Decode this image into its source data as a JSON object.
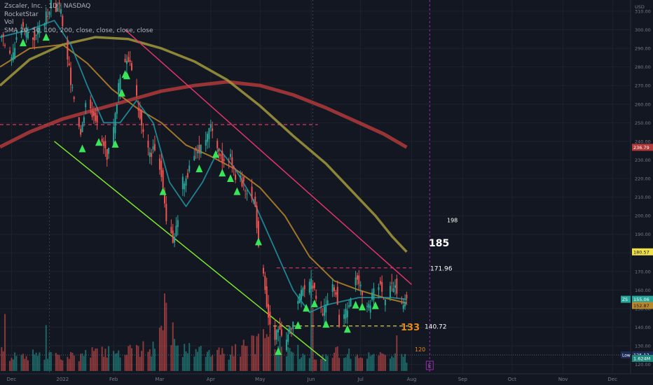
{
  "header": {
    "symbol_line": "Zscaler, Inc. · 1D · NASDAQ",
    "indicator_1": "RocketStar",
    "indicator_2": "Vol",
    "indicator_3": "SMA 20, 50, 100, 200, close, close, close, close"
  },
  "currency": "USD",
  "colors": {
    "background": "#131722",
    "up": "#26a69a",
    "down": "#ef5350",
    "sma20": "#2196a6",
    "sma50": "#b8862b",
    "sma100": "#a39a3c",
    "sma200": "#b23a3a",
    "support_trend": "#7ce62c",
    "resistance_trend": "#e0356a",
    "signal_arrow": "#39e65a"
  },
  "chart_data": {
    "type": "candlestick",
    "interval": "1D",
    "ylim": [
      115,
      316
    ],
    "y_ticks": [
      120,
      130,
      140,
      150,
      160,
      170,
      180,
      190,
      200,
      210,
      220,
      230,
      240,
      250,
      260,
      270,
      280,
      290,
      300,
      310
    ],
    "x_ticks": [
      "Dec",
      "2022",
      "Feb",
      "Mar",
      "Apr",
      "May",
      "Jun",
      "Jul",
      "Aug",
      "Sep",
      "Oct",
      "Nov",
      "Dec"
    ],
    "x_tick_days": [
      -31,
      0,
      31,
      59,
      90,
      120,
      151,
      181,
      212,
      243,
      273,
      304,
      334
    ],
    "last_bar_day": 209,
    "x_range_days": [
      -38,
      345
    ],
    "price_anchors": [
      [
        -38,
        300
      ],
      [
        -30,
        285
      ],
      [
        -24,
        302
      ],
      [
        -18,
        295
      ],
      [
        -12,
        300
      ],
      [
        -6,
        315
      ],
      [
        0,
        310
      ],
      [
        4,
        285
      ],
      [
        8,
        260
      ],
      [
        12,
        245
      ],
      [
        16,
        265
      ],
      [
        20,
        252
      ],
      [
        24,
        245
      ],
      [
        28,
        232
      ],
      [
        31,
        240
      ],
      [
        35,
        270
      ],
      [
        38,
        285
      ],
      [
        42,
        282
      ],
      [
        46,
        262
      ],
      [
        50,
        245
      ],
      [
        54,
        232
      ],
      [
        58,
        238
      ],
      [
        61,
        222
      ],
      [
        64,
        200
      ],
      [
        68,
        188
      ],
      [
        71,
        198
      ],
      [
        74,
        218
      ],
      [
        77,
        222
      ],
      [
        80,
        232
      ],
      [
        84,
        235
      ],
      [
        88,
        240
      ],
      [
        91,
        250
      ],
      [
        94,
        238
      ],
      [
        97,
        232
      ],
      [
        100,
        225
      ],
      [
        103,
        231
      ],
      [
        106,
        222
      ],
      [
        109,
        220
      ],
      [
        112,
        215
      ],
      [
        115,
        212
      ],
      [
        118,
        205
      ],
      [
        120,
        185
      ],
      [
        122,
        172
      ],
      [
        124,
        160
      ],
      [
        126,
        146
      ],
      [
        128,
        142
      ],
      [
        130,
        135
      ],
      [
        133,
        138
      ],
      [
        136,
        131
      ],
      [
        140,
        140
      ],
      [
        143,
        150
      ],
      [
        146,
        158
      ],
      [
        149,
        160
      ],
      [
        152,
        165
      ],
      [
        155,
        155
      ],
      [
        158,
        148
      ],
      [
        161,
        152
      ],
      [
        164,
        162
      ],
      [
        167,
        158
      ],
      [
        169,
        143
      ],
      [
        171,
        144
      ],
      [
        174,
        150
      ],
      [
        177,
        156
      ],
      [
        179,
        166
      ],
      [
        182,
        160
      ],
      [
        185,
        150
      ],
      [
        188,
        152
      ],
      [
        191,
        165
      ],
      [
        194,
        162
      ],
      [
        197,
        152
      ],
      [
        200,
        160
      ],
      [
        203,
        163
      ],
      [
        205,
        150
      ],
      [
        207,
        151
      ],
      [
        209,
        155
      ]
    ],
    "sma20": [
      [
        -38,
        296
      ],
      [
        -20,
        300
      ],
      [
        -5,
        305
      ],
      [
        5,
        292
      ],
      [
        15,
        270
      ],
      [
        25,
        250
      ],
      [
        35,
        250
      ],
      [
        45,
        262
      ],
      [
        55,
        250
      ],
      [
        65,
        218
      ],
      [
        75,
        205
      ],
      [
        85,
        218
      ],
      [
        95,
        236
      ],
      [
        105,
        225
      ],
      [
        115,
        210
      ],
      [
        120,
        200
      ],
      [
        130,
        180
      ],
      [
        140,
        160
      ],
      [
        150,
        148
      ],
      [
        160,
        152
      ],
      [
        170,
        154
      ],
      [
        180,
        156
      ],
      [
        190,
        156
      ],
      [
        200,
        156
      ],
      [
        209,
        155
      ]
    ],
    "sma50": [
      [
        -38,
        280
      ],
      [
        -20,
        290
      ],
      [
        0,
        292
      ],
      [
        15,
        282
      ],
      [
        30,
        268
      ],
      [
        45,
        258
      ],
      [
        60,
        250
      ],
      [
        75,
        238
      ],
      [
        90,
        232
      ],
      [
        105,
        225
      ],
      [
        120,
        215
      ],
      [
        135,
        200
      ],
      [
        150,
        178
      ],
      [
        165,
        165
      ],
      [
        180,
        160
      ],
      [
        195,
        156
      ],
      [
        209,
        153
      ]
    ],
    "sma100": [
      [
        -38,
        270
      ],
      [
        -20,
        284
      ],
      [
        0,
        292
      ],
      [
        20,
        296
      ],
      [
        40,
        295
      ],
      [
        60,
        290
      ],
      [
        80,
        283
      ],
      [
        100,
        273
      ],
      [
        120,
        259
      ],
      [
        140,
        243
      ],
      [
        160,
        228
      ],
      [
        175,
        214
      ],
      [
        190,
        200
      ],
      [
        200,
        189
      ],
      [
        209,
        180.57
      ]
    ],
    "sma200": [
      [
        -38,
        237
      ],
      [
        -20,
        245
      ],
      [
        0,
        252
      ],
      [
        20,
        257
      ],
      [
        40,
        262
      ],
      [
        60,
        267
      ],
      [
        80,
        270
      ],
      [
        100,
        272
      ],
      [
        120,
        270
      ],
      [
        140,
        265
      ],
      [
        160,
        258
      ],
      [
        180,
        250
      ],
      [
        195,
        244
      ],
      [
        209,
        236.79
      ]
    ],
    "support_trendline": [
      [
        -5,
        240
      ],
      [
        160,
        122
      ]
    ],
    "resistance_trendline": [
      [
        38,
        300
      ],
      [
        212,
        163
      ]
    ],
    "horizontal_levels": [
      {
        "price": 249,
        "from": -38,
        "to": 155
      },
      {
        "price": 171.96,
        "from": 130,
        "to": 212
      },
      {
        "price": 140.72,
        "from": 128,
        "to": 212
      },
      {
        "price": 125.12,
        "from": -38,
        "to": 345
      }
    ],
    "signal_days": [
      -24,
      -10,
      12,
      22,
      32,
      36,
      38,
      39,
      61,
      83,
      93,
      97,
      102,
      106,
      119,
      131,
      143,
      148,
      153,
      160,
      173,
      178,
      182,
      190
    ],
    "volume_anchors": [
      [
        -38,
        22
      ],
      [
        -20,
        20
      ],
      [
        0,
        18
      ],
      [
        30,
        24
      ],
      [
        55,
        28
      ],
      [
        62,
        68
      ],
      [
        70,
        30
      ],
      [
        100,
        22
      ],
      [
        125,
        40
      ],
      [
        150,
        18
      ],
      [
        170,
        24
      ],
      [
        190,
        18
      ],
      [
        209,
        16
      ]
    ],
    "volume_spikes": [
      [
        -35,
        72
      ],
      [
        -10,
        58
      ],
      [
        62,
        98
      ],
      [
        64,
        80
      ],
      [
        128,
        56
      ],
      [
        151,
        110
      ],
      [
        152,
        80
      ],
      [
        203,
        45
      ]
    ],
    "volume_scale_max": 115,
    "annotations": [
      {
        "text": "185",
        "price": 185,
        "kind": "target"
      },
      {
        "text": "198",
        "price": 198,
        "kind": "minor"
      },
      {
        "text": "171.96",
        "price": 171.96,
        "kind": "level"
      },
      {
        "text": "140.72",
        "price": 140.72,
        "kind": "level"
      },
      {
        "text": "133",
        "price": 133,
        "kind": "target-orange"
      },
      {
        "text": "120",
        "price": 120,
        "kind": "minor-orange"
      }
    ],
    "price_labels": [
      {
        "text": "236.79",
        "price": 236.79,
        "color": "#b23a3a"
      },
      {
        "text": "180.57",
        "price": 180.57,
        "color": "#f0e04a"
      },
      {
        "text": "155.06",
        "price": 155.06,
        "color": "#26a69a",
        "tag": "ZS"
      },
      {
        "text": "152.87",
        "price": 152.87,
        "color": "#b8862b"
      },
      {
        "text": "125.12",
        "price": 125.12,
        "color": "#1e2a55",
        "tag": "Low"
      }
    ],
    "volume_label": "1.624M",
    "earnings_marker": {
      "text": "E",
      "day": 223
    }
  }
}
